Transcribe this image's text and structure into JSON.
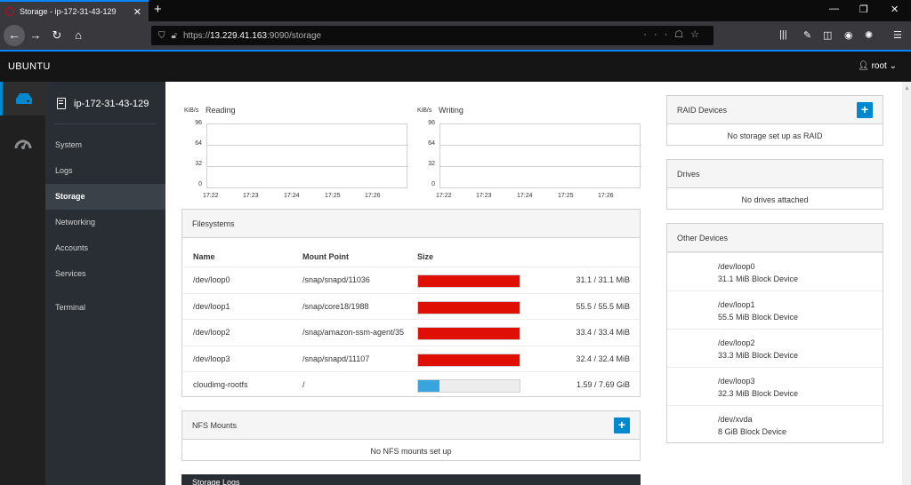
{
  "browser": {
    "tab_title": "Storage - ip-172-31-43-129",
    "url_scheme": "https://",
    "url_host": "13.229.41.163",
    "url_rest": ":9090/storage"
  },
  "cockpit": {
    "brand": "UBUNTU",
    "user": "root"
  },
  "sidebar": {
    "host": "ip-172-31-43-129",
    "items": [
      {
        "label": "System"
      },
      {
        "label": "Logs"
      },
      {
        "label": "Storage"
      },
      {
        "label": "Networking"
      },
      {
        "label": "Accounts"
      },
      {
        "label": "Services"
      },
      {
        "label": "Terminal"
      }
    ],
    "active": "Storage"
  },
  "graphs": {
    "reading": {
      "title": "Reading",
      "unit": "KiB/s"
    },
    "writing": {
      "title": "Writing",
      "unit": "KiB/s"
    },
    "y_ticks": [
      "96",
      "64",
      "32",
      "0"
    ],
    "x_ticks": [
      "17:22",
      "17:23",
      "17:24",
      "17:25",
      "17:26"
    ]
  },
  "filesystems": {
    "title": "Filesystems",
    "columns": {
      "name": "Name",
      "mount": "Mount Point",
      "size": "Size"
    },
    "rows": [
      {
        "name": "/dev/loop0",
        "mount": "/snap/snapd/11036",
        "size": "31.1 / 31.1 MiB",
        "fraction": 1.0
      },
      {
        "name": "/dev/loop1",
        "mount": "/snap/core18/1988",
        "size": "55.5 / 55.5 MiB",
        "fraction": 1.0
      },
      {
        "name": "/dev/loop2",
        "mount": "/snap/amazon-ssm-agent/35",
        "size": "33.4 / 33.4 MiB",
        "fraction": 1.0
      },
      {
        "name": "/dev/loop3",
        "mount": "/snap/snapd/11107",
        "size": "32.4 / 32.4 MiB",
        "fraction": 1.0
      },
      {
        "name": "cloudimg-rootfs",
        "mount": "/",
        "size": "1.59 / 7.69 GiB",
        "fraction": 0.207
      }
    ],
    "full_color": "#e00f04",
    "normal_color": "#39a5dc"
  },
  "nfs": {
    "title": "NFS Mounts",
    "add_label": "+",
    "empty": "No NFS mounts set up"
  },
  "storage_logs": {
    "title": "Storage Logs"
  },
  "raid": {
    "title": "RAID Devices",
    "add_label": "+",
    "empty": "No storage set up as RAID"
  },
  "drives": {
    "title": "Drives",
    "empty": "No drives attached"
  },
  "other_devices": {
    "title": "Other Devices",
    "items": [
      {
        "name": "/dev/loop0",
        "desc": "31.1 MiB Block Device"
      },
      {
        "name": "/dev/loop1",
        "desc": "55.5 MiB Block Device"
      },
      {
        "name": "/dev/loop2",
        "desc": "33.3 MiB Block Device"
      },
      {
        "name": "/dev/loop3",
        "desc": "32.3 MiB Block Device"
      },
      {
        "name": "/dev/xvda",
        "desc": "8 GiB Block Device"
      }
    ]
  },
  "icons": {
    "storage_rail": "hard-drive-icon",
    "dashboard_rail": "dashboard-gauge-icon"
  }
}
